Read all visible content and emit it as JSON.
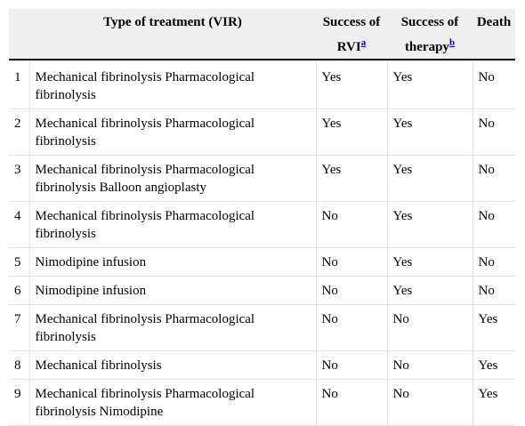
{
  "table": {
    "header": {
      "type": "Type of treatment (VIR)",
      "rvi": {
        "text": "Success of RVI",
        "note": "a"
      },
      "therapy": {
        "text": "Success of therapy",
        "note": "b"
      },
      "death": "Death"
    },
    "rows": [
      [
        "1",
        "Mechanical fibrinolysis Pharmacological fibrinolysis",
        "Yes",
        "Yes",
        "No"
      ],
      [
        "2",
        "Mechanical fibrinolysis Pharmacological fibrinolysis",
        "Yes",
        "Yes",
        "No"
      ],
      [
        "3",
        "Mechanical fibrinolysis Pharmacological fibrinolysis Balloon angioplasty",
        "Yes",
        "Yes",
        "No"
      ],
      [
        "4",
        "Mechanical fibrinolysis Pharmacological fibrinolysis",
        "No",
        "Yes",
        "No"
      ],
      [
        "5",
        "Nimodipine infusion",
        "No",
        "Yes",
        "No"
      ],
      [
        "6",
        "Nimodipine infusion",
        "No",
        "Yes",
        "No"
      ],
      [
        "7",
        "Mechanical fibrinolysis Pharmacological fibrinolysis",
        "No",
        "No",
        "Yes"
      ],
      [
        "8",
        "Mechanical fibrinolysis",
        "No",
        "No",
        "Yes"
      ],
      [
        "9",
        "Mechanical fibrinolysis Pharmacological fibrinolysis Nimodipine",
        "No",
        "No",
        "Yes"
      ]
    ]
  }
}
